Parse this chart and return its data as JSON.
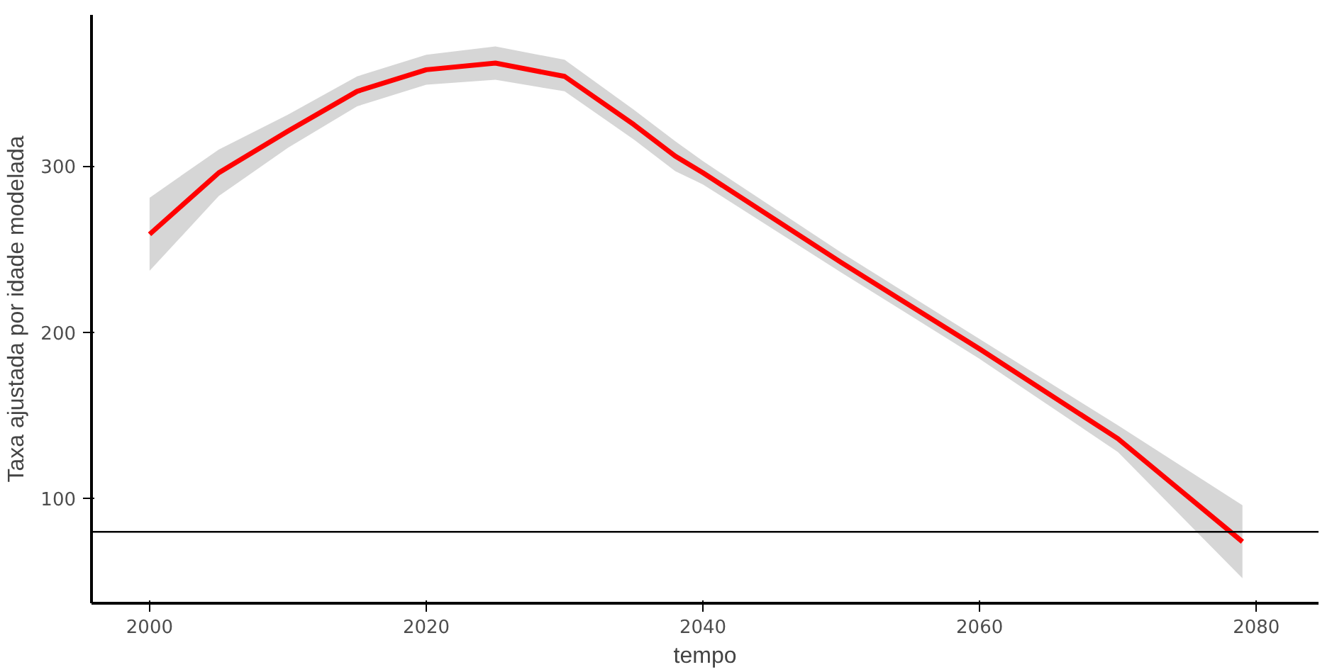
{
  "chart_data": {
    "type": "line",
    "xlabel": "tempo",
    "ylabel": "Taxa ajustada por idade modelada",
    "x": [
      2000,
      2005,
      2010,
      2015,
      2020,
      2025,
      2030,
      2035,
      2038,
      2040,
      2050,
      2060,
      2070,
      2079
    ],
    "series": [
      {
        "color": "#ff0000",
        "values": [
          259,
          296,
          321,
          345,
          358,
          362,
          354,
          325,
          306,
          296,
          242,
          190,
          136,
          74
        ],
        "lower": [
          237,
          282,
          311,
          336,
          349,
          352,
          345,
          316,
          297,
          289,
          236,
          184,
          128,
          52
        ],
        "upper": [
          281,
          310,
          331,
          354,
          367,
          372,
          364,
          334,
          315,
          303,
          248,
          196,
          144,
          96
        ]
      }
    ],
    "xlim": [
      1995.8,
      2084.5
    ],
    "ylim": [
      37,
      391
    ],
    "xticks": [
      2000,
      2020,
      2040,
      2060,
      2080
    ],
    "yticks": [
      100,
      200,
      300
    ],
    "ref_lines": [
      {
        "axis": "y",
        "value": 80,
        "color": "#000000"
      }
    ],
    "grid": false,
    "marker": "none",
    "line_style": "solid"
  }
}
